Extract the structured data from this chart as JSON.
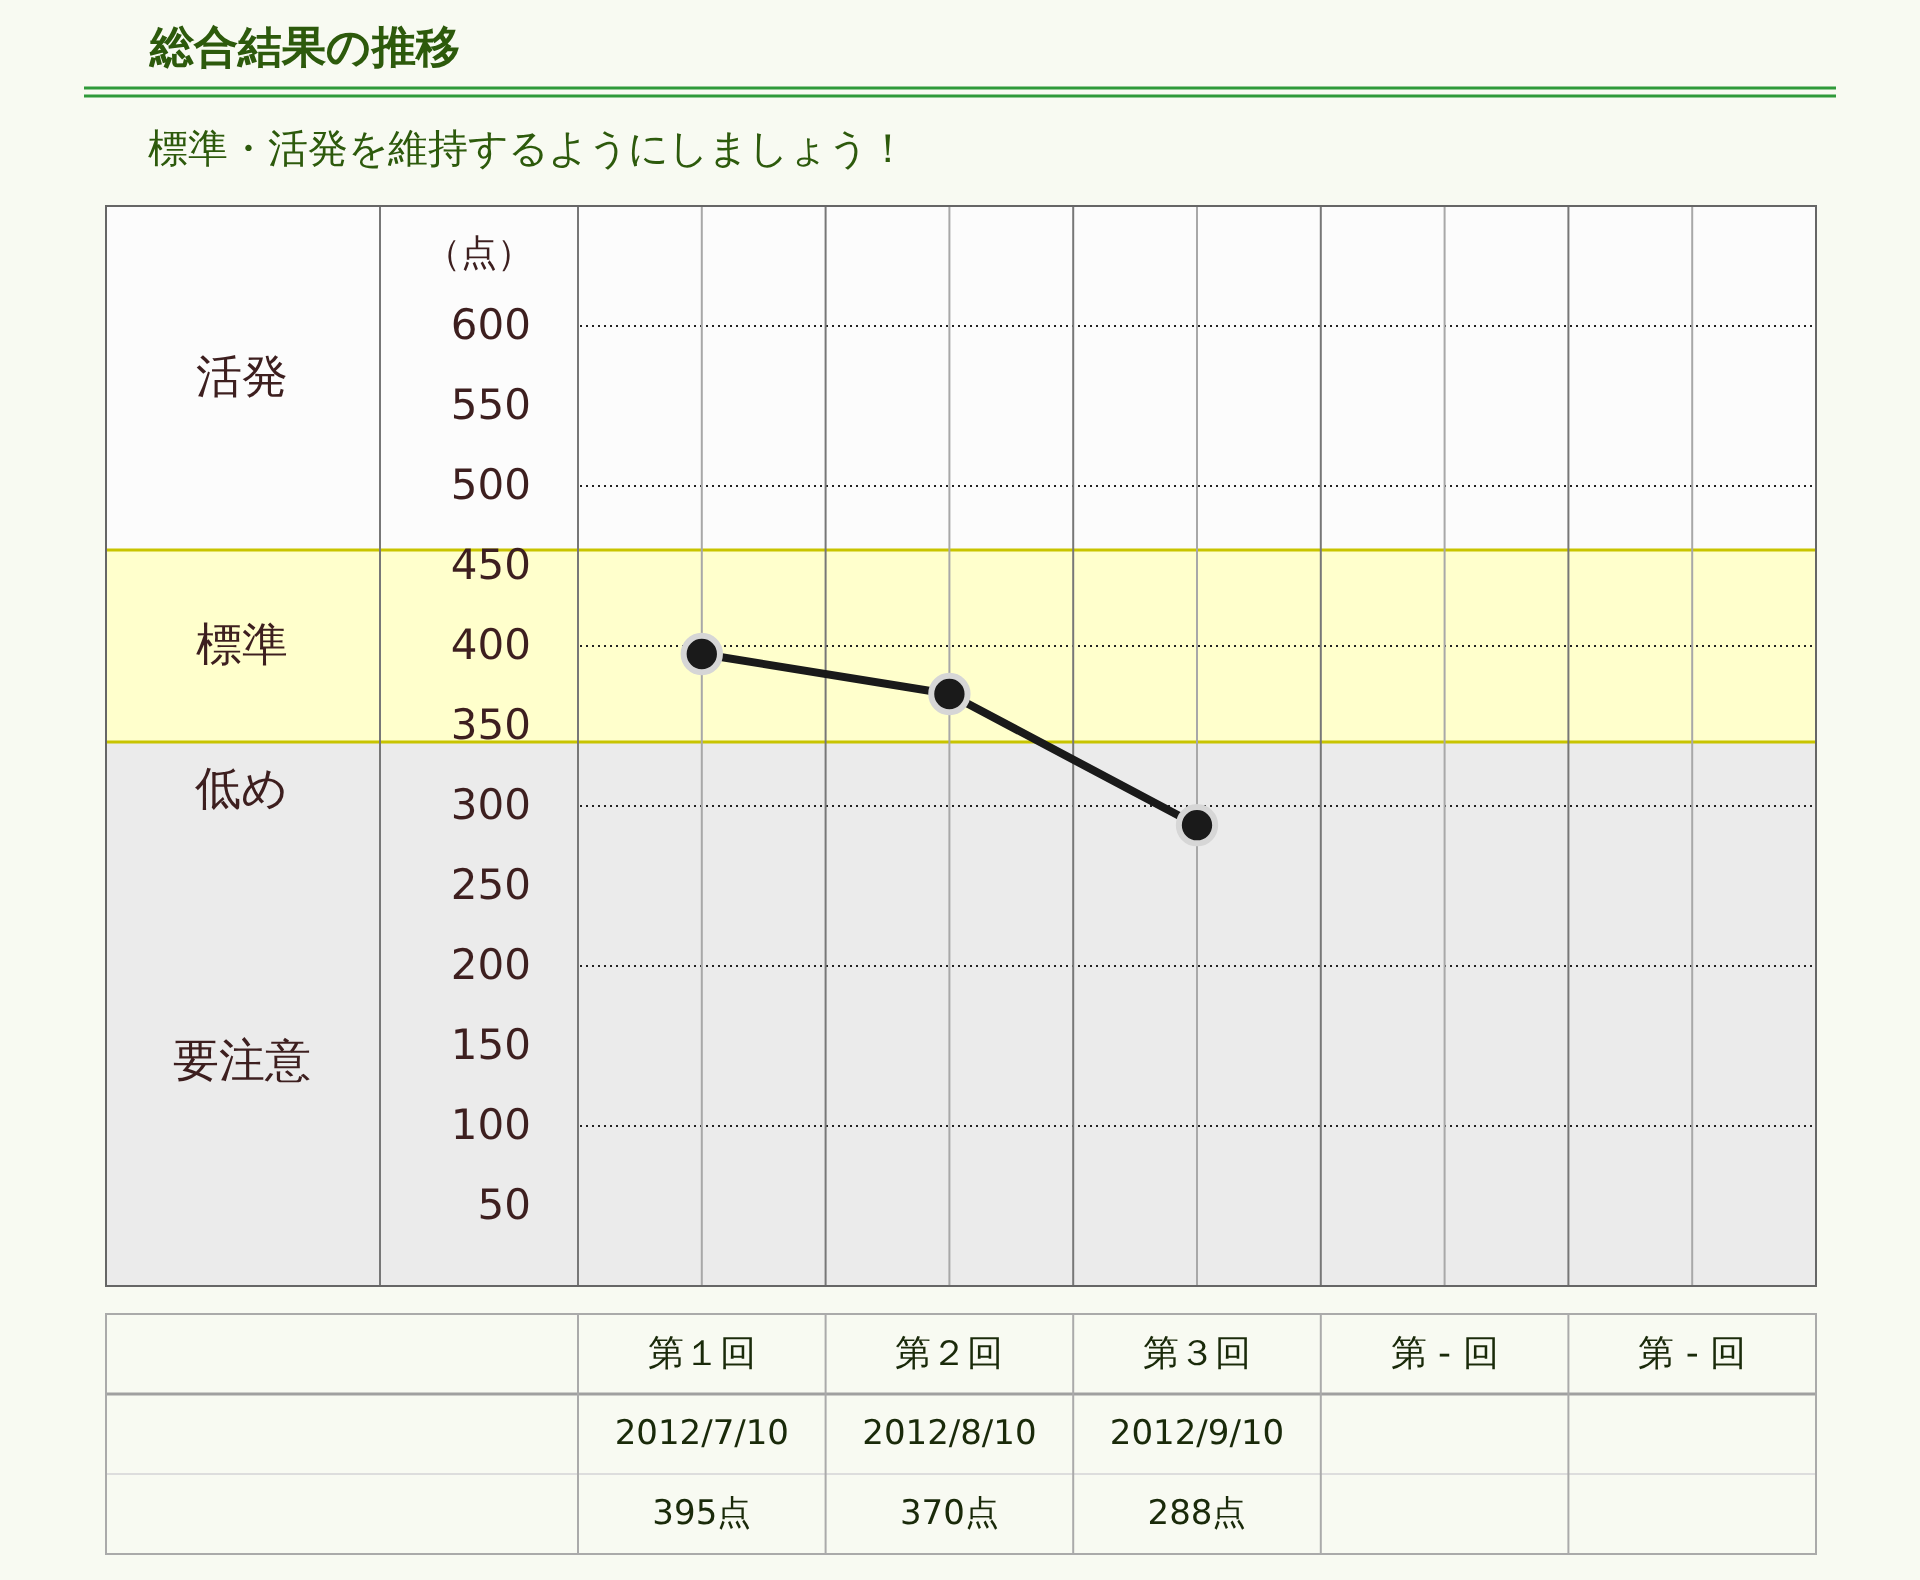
{
  "chart_data": {
    "type": "line",
    "title": "総合結果の推移",
    "subtitle": "標準・活発を維持するようにしましょう！",
    "ylabel": "（点）",
    "categories": [
      "第１回",
      "第２回",
      "第３回",
      "第 - 回",
      "第 - 回"
    ],
    "values": [
      395,
      370,
      288,
      null,
      null
    ],
    "value_labels": [
      "395点",
      "370点",
      "288点",
      null,
      null
    ],
    "color": "#1a1a1a",
    "marker": "circle",
    "line_style": "solid",
    "ylim": [
      0,
      675
    ],
    "yticks": [
      50,
      100,
      150,
      200,
      250,
      300,
      350,
      400,
      450,
      500,
      550,
      600
    ],
    "grid": true,
    "bands": [
      {
        "axis": "y",
        "from": 460,
        "to": 675,
        "label": "活発",
        "color": "#fcfcfc"
      },
      {
        "axis": "y",
        "from": 340,
        "to": 460,
        "label": "標準",
        "color": "#ffffcc"
      },
      {
        "axis": "y",
        "from": 280,
        "to": 340,
        "label": "低め",
        "color": "#ebebeb"
      },
      {
        "axis": "y",
        "from": 0,
        "to": 280,
        "label": "要注意",
        "color": "#ebebeb"
      }
    ],
    "ref_lines": [
      {
        "axis": "y",
        "value": 340,
        "color": "#c8c400"
      },
      {
        "axis": "y",
        "value": 460,
        "color": "#c8c400"
      }
    ],
    "annotations": [
      "2012/7/10",
      "2012/8/10",
      "2012/9/10"
    ]
  }
}
